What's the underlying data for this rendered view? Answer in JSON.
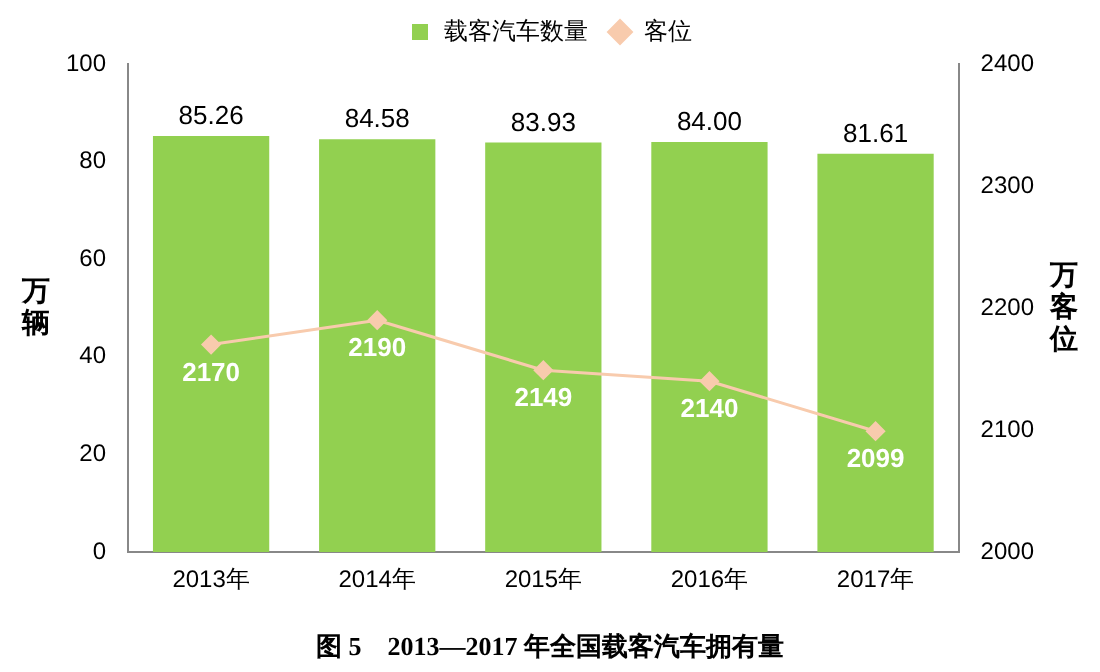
{
  "chart_data": {
    "type": "bar",
    "title": "图 5　2013—2017 年全国载客汽车拥有量",
    "categories": [
      "2013年",
      "2014年",
      "2015年",
      "2016年",
      "2017年"
    ],
    "series": [
      {
        "name": "载客汽车数量",
        "color": "#92d050",
        "values": [
          85.26,
          84.58,
          83.93,
          84.0,
          81.61
        ],
        "value_labels": [
          "85.26",
          "84.58",
          "83.93",
          "84.00",
          "81.61"
        ]
      },
      {
        "name": "客位",
        "type": "line",
        "axis": "y2",
        "color": "#f8cbad",
        "marker": "diamond",
        "values": [
          2170,
          2190,
          2149,
          2140,
          2099
        ],
        "value_labels": [
          "2170",
          "2190",
          "2149",
          "2140",
          "2099"
        ]
      }
    ],
    "ylabel": "万辆",
    "y2label": "万客位",
    "ylim": [
      0,
      100
    ],
    "yticks": [
      0,
      20,
      40,
      60,
      80,
      100
    ],
    "y2lim": [
      2000,
      2400
    ],
    "y2ticks": [
      2000,
      2100,
      2200,
      2300,
      2400
    ],
    "grid": false,
    "legend": "top"
  }
}
